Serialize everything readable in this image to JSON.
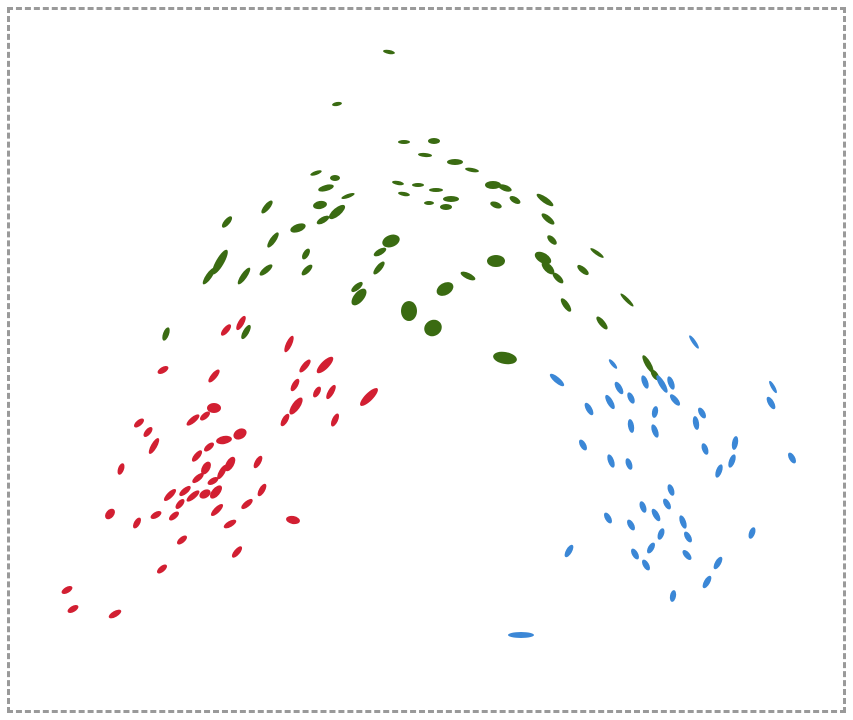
{
  "figure": {
    "border_color": "#9a9a9a",
    "border_style": "dashed"
  },
  "clusters": [
    {
      "name": "green-cluster",
      "color": "#3a6b12"
    },
    {
      "name": "red-cluster",
      "color": "#d21f32"
    },
    {
      "name": "blue-cluster",
      "color": "#3b87d6"
    }
  ]
}
